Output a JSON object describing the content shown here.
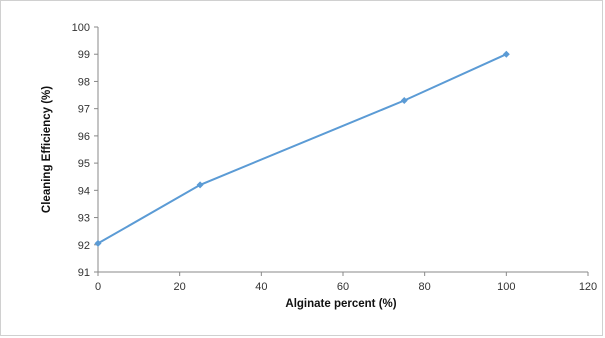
{
  "chart_data": {
    "type": "line",
    "title": "",
    "xlabel": "Alginate percent (%)",
    "ylabel": "Cleaning Efficiency (%)",
    "xlim": [
      0,
      120
    ],
    "ylim": [
      91,
      100
    ],
    "x_ticks": [
      0,
      20,
      40,
      60,
      80,
      100,
      120
    ],
    "y_ticks": [
      91,
      92,
      93,
      94,
      95,
      96,
      97,
      98,
      99,
      100
    ],
    "grid": false,
    "legend": "none",
    "series": [
      {
        "color": "#5b9bd5",
        "marker": "diamond",
        "x": [
          0,
          25,
          75,
          100
        ],
        "y": [
          92.05,
          94.2,
          97.3,
          99.0
        ]
      }
    ]
  }
}
